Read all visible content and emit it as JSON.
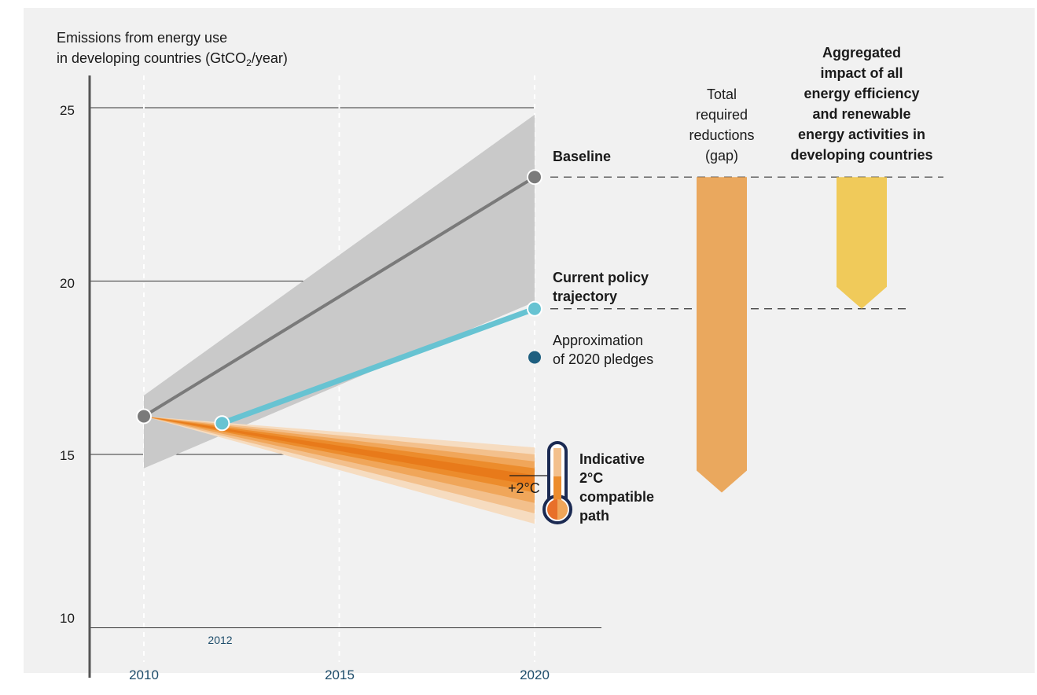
{
  "chart_data": {
    "type": "line",
    "title": "",
    "ylabel_line1": "Emissions from energy use",
    "ylabel_line2_pre": "in developing countries (GtCO",
    "ylabel_sub": "2",
    "ylabel_line2_post": "/year)",
    "ylim": [
      9,
      26
    ],
    "y_ticks": [
      10,
      15,
      20,
      25
    ],
    "x_ticks": [
      2010,
      2015,
      2020
    ],
    "x_extra_tick": "2012",
    "grid": "horizontal at y ticks, dashed vertical at x ticks",
    "series": [
      {
        "name": "Baseline",
        "color": "#7a7a7a",
        "points": [
          [
            2010,
            16.1
          ],
          [
            2020,
            23.0
          ]
        ]
      },
      {
        "name": "Current policy trajectory",
        "color": "#67c3d2",
        "points": [
          [
            2012,
            15.9
          ],
          [
            2020,
            19.2
          ]
        ]
      }
    ],
    "baseline_range": {
      "color": "#c9c9c9",
      "start": [
        2010,
        14.6,
        16.7
      ],
      "end": [
        2020,
        19.4,
        24.8
      ]
    },
    "two_degree_fan": {
      "colors": [
        "#f6dcc0",
        "#f3c08c",
        "#f0a65a",
        "#ec8c2c",
        "#e87a1a"
      ],
      "origin": [
        2010,
        16.1
      ],
      "end_bands": [
        [
          13.0,
          15.2
        ],
        [
          13.3,
          15.0
        ],
        [
          13.6,
          14.8
        ],
        [
          13.9,
          14.6
        ],
        [
          14.1,
          14.4
        ]
      ]
    },
    "pledges_marker": {
      "color": "#1e5f80",
      "value": [
        2020,
        17.8
      ]
    },
    "gap_bar": {
      "color": "#eaa85e",
      "top": 23.0,
      "bottom": 13.9
    },
    "impact_bar": {
      "color": "#f0ca5a",
      "top": 23.0,
      "bottom": 19.2
    },
    "labels": {
      "baseline": "Baseline",
      "current_policy_1": "Current policy",
      "current_policy_2": "trajectory",
      "pledges_1": "Approximation",
      "pledges_2": "of 2020 pledges",
      "path_1": "Indicative",
      "path_2": "2°C",
      "path_3": "compatible",
      "path_4": "path",
      "thermo": "+2°C",
      "gap_1": "Total",
      "gap_2": "required",
      "gap_3": "reductions",
      "gap_4": "(gap)",
      "impact_1": "Aggregated",
      "impact_2": "impact of all",
      "impact_3": "energy efficiency",
      "impact_4": "and renewable",
      "impact_5": "energy activities in",
      "impact_6": "developing countries"
    }
  }
}
